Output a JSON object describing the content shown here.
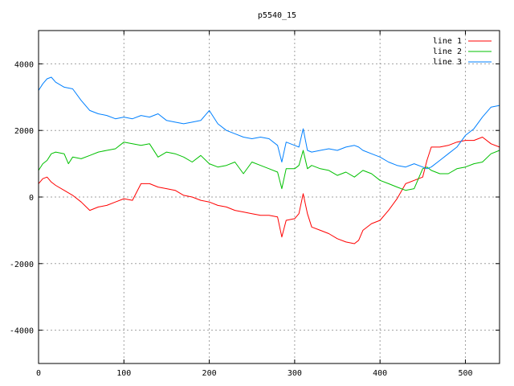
{
  "chart_data": {
    "type": "line",
    "title": "p5540_15",
    "xlabel": "",
    "ylabel": "",
    "xlim": [
      0,
      540
    ],
    "ylim": [
      -5000,
      5000
    ],
    "x_ticks": [
      0,
      100,
      200,
      300,
      400,
      500
    ],
    "y_ticks": [
      -4000,
      -2000,
      0,
      2000,
      4000
    ],
    "grid": true,
    "legend_position": "top-right",
    "series": [
      {
        "name": "line 1",
        "color": "#ff0000",
        "x": [
          0,
          5,
          10,
          15,
          20,
          30,
          40,
          50,
          60,
          70,
          80,
          90,
          100,
          110,
          120,
          130,
          140,
          150,
          160,
          170,
          180,
          190,
          200,
          210,
          220,
          230,
          240,
          250,
          260,
          270,
          280,
          285,
          290,
          300,
          305,
          310,
          315,
          320,
          330,
          340,
          350,
          360,
          370,
          375,
          380,
          390,
          400,
          410,
          420,
          430,
          440,
          450,
          455,
          460,
          470,
          480,
          490,
          500,
          510,
          520,
          530,
          540
        ],
        "y": [
          400,
          550,
          600,
          450,
          350,
          200,
          50,
          -150,
          -400,
          -300,
          -250,
          -150,
          -50,
          -100,
          400,
          400,
          300,
          250,
          200,
          50,
          0,
          -100,
          -150,
          -250,
          -300,
          -400,
          -450,
          -500,
          -550,
          -550,
          -600,
          -1200,
          -700,
          -650,
          -500,
          100,
          -500,
          -900,
          -1000,
          -1100,
          -1250,
          -1350,
          -1400,
          -1300,
          -1000,
          -800,
          -700,
          -400,
          -50,
          400,
          500,
          600,
          1100,
          1500,
          1500,
          1550,
          1650,
          1700,
          1700,
          1800,
          1600,
          1500
        ]
      },
      {
        "name": "line 2",
        "color": "#00c000",
        "x": [
          0,
          5,
          10,
          15,
          20,
          30,
          35,
          40,
          50,
          60,
          70,
          80,
          90,
          100,
          110,
          120,
          130,
          140,
          150,
          160,
          170,
          180,
          190,
          200,
          210,
          220,
          230,
          240,
          250,
          260,
          270,
          280,
          285,
          290,
          300,
          305,
          310,
          315,
          320,
          330,
          340,
          350,
          360,
          370,
          375,
          380,
          390,
          400,
          410,
          420,
          430,
          440,
          450,
          455,
          460,
          470,
          480,
          490,
          500,
          510,
          520,
          530,
          540
        ],
        "y": [
          800,
          1000,
          1100,
          1300,
          1350,
          1300,
          1000,
          1200,
          1150,
          1250,
          1350,
          1400,
          1450,
          1650,
          1600,
          1550,
          1600,
          1200,
          1350,
          1300,
          1200,
          1050,
          1250,
          1000,
          900,
          950,
          1050,
          700,
          1050,
          950,
          850,
          750,
          250,
          850,
          850,
          950,
          1400,
          850,
          950,
          850,
          800,
          650,
          750,
          600,
          700,
          800,
          700,
          500,
          400,
          300,
          200,
          250,
          850,
          900,
          800,
          700,
          700,
          850,
          900,
          1000,
          1050,
          1300,
          1400
        ]
      },
      {
        "name": "line 3",
        "color": "#0080ff",
        "x": [
          0,
          5,
          10,
          15,
          20,
          30,
          40,
          50,
          60,
          70,
          80,
          90,
          100,
          110,
          120,
          130,
          140,
          150,
          160,
          170,
          180,
          190,
          200,
          210,
          220,
          230,
          240,
          250,
          260,
          270,
          280,
          285,
          290,
          300,
          305,
          310,
          315,
          320,
          330,
          340,
          350,
          360,
          370,
          375,
          380,
          390,
          400,
          410,
          420,
          430,
          440,
          450,
          455,
          460,
          470,
          480,
          490,
          500,
          510,
          520,
          530,
          540
        ],
        "y": [
          3200,
          3400,
          3550,
          3600,
          3450,
          3300,
          3250,
          2900,
          2600,
          2500,
          2450,
          2350,
          2400,
          2350,
          2450,
          2400,
          2500,
          2300,
          2250,
          2200,
          2250,
          2300,
          2600,
          2200,
          2000,
          1900,
          1800,
          1750,
          1800,
          1750,
          1550,
          1050,
          1650,
          1550,
          1500,
          2050,
          1400,
          1350,
          1400,
          1450,
          1400,
          1500,
          1550,
          1500,
          1400,
          1300,
          1200,
          1050,
          950,
          900,
          1000,
          900,
          850,
          900,
          1100,
          1300,
          1500,
          1850,
          2050,
          2400,
          2700,
          2750
        ]
      }
    ]
  }
}
